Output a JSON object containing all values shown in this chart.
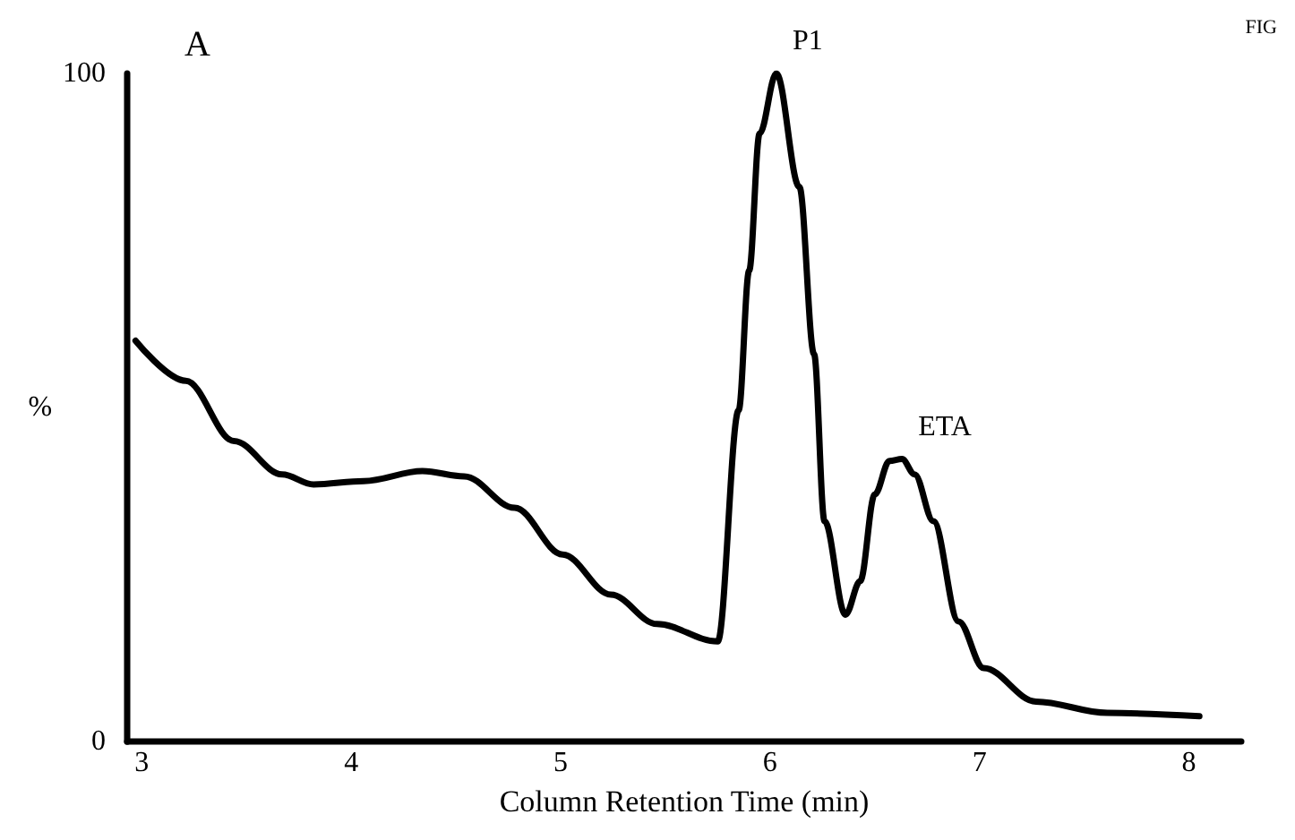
{
  "chart_data": {
    "type": "line",
    "title": "A",
    "xlabel": "Column Retention Time (min)",
    "ylabel": "%",
    "x": [
      2.97,
      3.21,
      3.44,
      3.67,
      3.82,
      4.06,
      4.34,
      4.54,
      4.78,
      5.01,
      5.24,
      5.46,
      5.75,
      5.85,
      5.9,
      5.95,
      6.03,
      6.14,
      6.21,
      6.26,
      6.36,
      6.43,
      6.5,
      6.57,
      6.63,
      6.69,
      6.78,
      6.9,
      7.02,
      7.27,
      7.61,
      8.05
    ],
    "series": [
      {
        "color": "#000000",
        "values": [
          60,
          54,
          45,
          40,
          38.5,
          39,
          40.5,
          39.7,
          35,
          28,
          22,
          17.6,
          15,
          49.6,
          70.5,
          91,
          100,
          83,
          58,
          33,
          19,
          24,
          37,
          42,
          42.3,
          40,
          33,
          18,
          11,
          6,
          4.3,
          3.8
        ]
      }
    ],
    "xlim": [
      2.93,
      8.25
    ],
    "xticks": [
      3,
      4,
      5,
      6,
      7,
      8
    ],
    "ylim": [
      0,
      100
    ],
    "yticks": [
      0,
      100
    ],
    "grid": false,
    "marker": "none",
    "line_style": "solid",
    "annotations": [
      {
        "text": "P1",
        "x": 6.03,
        "y": 100
      },
      {
        "text": "ETA",
        "x": 6.63,
        "y": 42.3
      },
      "FIG"
    ]
  }
}
